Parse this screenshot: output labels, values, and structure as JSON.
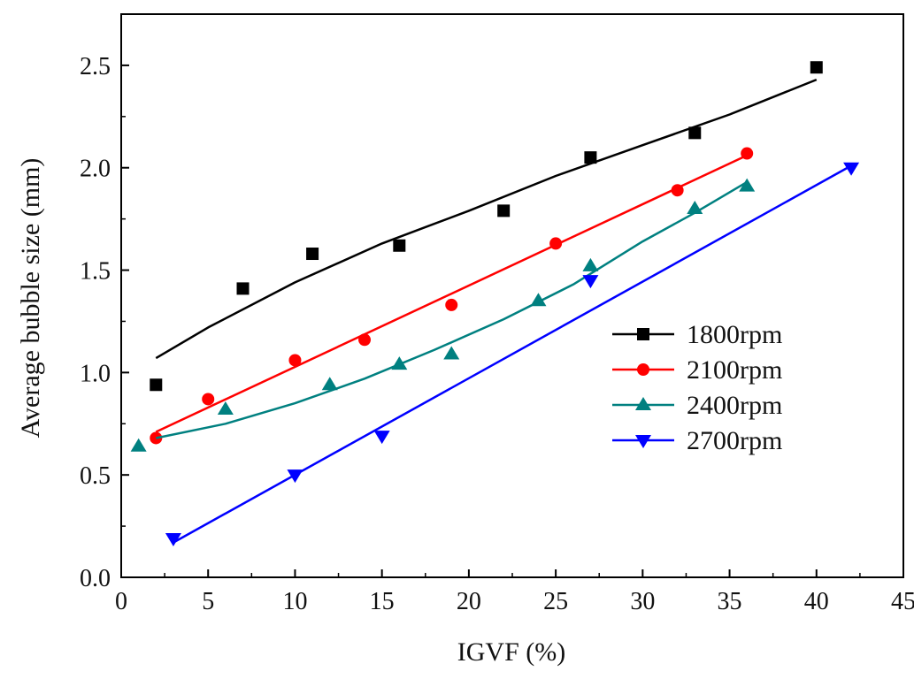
{
  "chart_data": {
    "type": "scatter",
    "title": "",
    "xlabel": "IGVF (%)",
    "ylabel": "Average bubble size (mm)",
    "xlim": [
      0,
      45
    ],
    "ylim": [
      0.0,
      2.75
    ],
    "xticks": [
      0,
      5,
      10,
      15,
      20,
      25,
      30,
      35,
      40,
      45
    ],
    "yticks": [
      0.0,
      0.5,
      1.0,
      1.5,
      2.0,
      2.5
    ],
    "xtick_labels": [
      "0",
      "5",
      "10",
      "15",
      "20",
      "25",
      "30",
      "35",
      "40",
      "45"
    ],
    "ytick_labels": [
      "0.0",
      "0.5",
      "1.0",
      "1.5",
      "2.0",
      "2.5"
    ],
    "grid": false,
    "legend_position": "center-right",
    "series": [
      {
        "name": "1800rpm",
        "color": "#000000",
        "marker": "square",
        "x": [
          2,
          7,
          11,
          16,
          22,
          27,
          33,
          40
        ],
        "y": [
          0.94,
          1.41,
          1.58,
          1.62,
          1.79,
          2.05,
          2.17,
          2.49
        ],
        "fit_x": [
          2,
          5,
          10,
          15,
          20,
          25,
          30,
          35,
          40
        ],
        "fit_y": [
          1.07,
          1.22,
          1.44,
          1.63,
          1.79,
          1.96,
          2.11,
          2.26,
          2.43
        ]
      },
      {
        "name": "2100rpm",
        "color": "#ff0000",
        "marker": "circle",
        "x": [
          2,
          5,
          10,
          14,
          19,
          25,
          32,
          36
        ],
        "y": [
          0.68,
          0.87,
          1.06,
          1.16,
          1.33,
          1.63,
          1.89,
          2.07
        ],
        "fit_x": [
          2,
          36
        ],
        "fit_y": [
          0.71,
          2.06
        ]
      },
      {
        "name": "2400rpm",
        "color": "#008080",
        "marker": "triangle-up",
        "x": [
          1,
          6,
          12,
          16,
          19,
          24,
          27,
          33,
          36
        ],
        "y": [
          0.64,
          0.82,
          0.94,
          1.04,
          1.09,
          1.35,
          1.52,
          1.8,
          1.91
        ],
        "fit_x": [
          2,
          6,
          10,
          14,
          18,
          22,
          26,
          30,
          33,
          36
        ],
        "fit_y": [
          0.68,
          0.75,
          0.85,
          0.97,
          1.11,
          1.26,
          1.43,
          1.64,
          1.78,
          1.93
        ]
      },
      {
        "name": "2700rpm",
        "color": "#0000ff",
        "marker": "triangle-down",
        "x": [
          3,
          10,
          15,
          27,
          42
        ],
        "y": [
          0.19,
          0.5,
          0.69,
          1.45,
          2.0
        ],
        "fit_x": [
          3,
          42
        ],
        "fit_y": [
          0.17,
          2.01
        ]
      }
    ]
  }
}
